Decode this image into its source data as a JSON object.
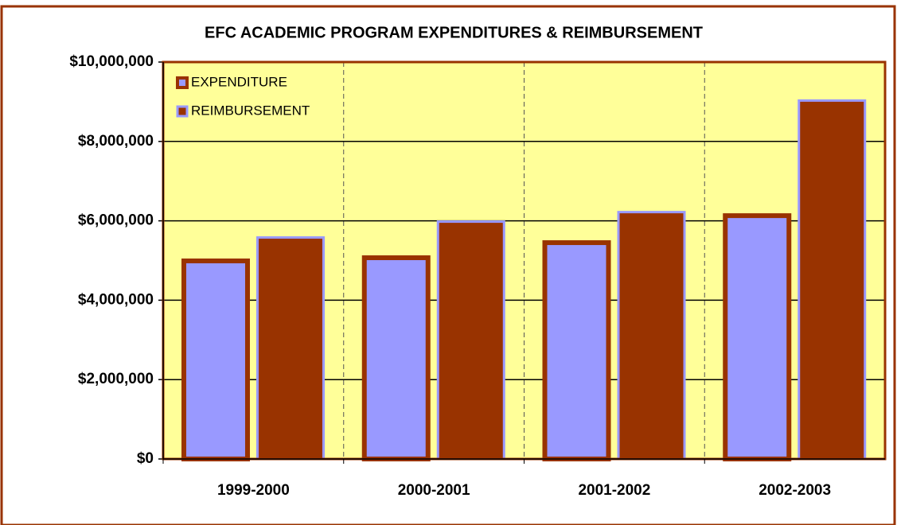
{
  "chart_data": {
    "type": "bar",
    "title": "EFC ACADEMIC PROGRAM EXPENDITURES & REIMBURSEMENT",
    "categories": [
      "1999-2000",
      "2000-2001",
      "2001-2002",
      "2002-2003"
    ],
    "series": [
      {
        "name": "EXPENDITURE",
        "color": "#9999ff",
        "edge_color": "#993300",
        "values": [
          5050000,
          5130000,
          5510000,
          6190000
        ]
      },
      {
        "name": "REIMBURSEMENT",
        "color": "#993300",
        "edge_color": "#9999ff",
        "values": [
          5610000,
          6010000,
          6250000,
          9060000
        ]
      }
    ],
    "ylim": [
      0,
      10000000
    ],
    "yticks": [
      {
        "value": 0,
        "label": "$0"
      },
      {
        "value": 2000000,
        "label": "$2,000,000"
      },
      {
        "value": 4000000,
        "label": "$4,000,000"
      },
      {
        "value": 6000000,
        "label": "$6,000,000"
      },
      {
        "value": 8000000,
        "label": "$8,000,000"
      },
      {
        "value": 10000000,
        "label": "$10,000,000"
      }
    ],
    "grid": true,
    "legend": "top-left",
    "background": "#ffff99"
  }
}
